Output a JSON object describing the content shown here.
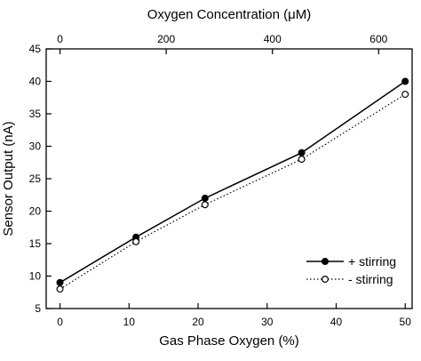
{
  "chart_data": {
    "type": "line",
    "title": "",
    "xlabel": "Gas Phase Oxygen (%)",
    "ylabel": "Sensor Output (nA)",
    "top_xlabel": "Oxygen Concentration (μM)",
    "xlim": [
      -2,
      51
    ],
    "ylim": [
      5,
      45
    ],
    "x_ticks": [
      0,
      10,
      20,
      30,
      40,
      50
    ],
    "y_ticks": [
      5,
      10,
      15,
      20,
      25,
      30,
      35,
      40,
      45
    ],
    "top_xlim": [
      -26,
      663
    ],
    "top_x_ticks": [
      0,
      200,
      400,
      600
    ],
    "grid": false,
    "legend_position": "bottom-right",
    "x": [
      0,
      11,
      21,
      35,
      50
    ],
    "series": [
      {
        "name": "+ stirring",
        "values": [
          9,
          16,
          22,
          29,
          40
        ],
        "line_style": "solid",
        "marker": "filled-circle",
        "color": "#000000"
      },
      {
        "name": "- stirring",
        "values": [
          8,
          15.3,
          21,
          28,
          38
        ],
        "line_style": "dotted",
        "marker": "open-circle",
        "color": "#000000"
      }
    ]
  }
}
